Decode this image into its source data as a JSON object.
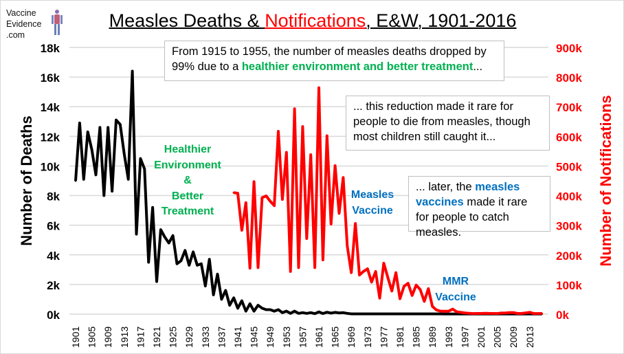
{
  "logo": {
    "line1": "Vaccine",
    "line2": "Evidence",
    "line3": ".com"
  },
  "title": {
    "part1": "Measles Deaths & ",
    "part2": "Notifications",
    "part3": ", E&W, 1901-2016"
  },
  "annotations": {
    "box1": {
      "text1": "From 1915 to 1955, the number of measles deaths dropped by 99% due to a ",
      "highlight": "healthier environment and better treatment",
      "text2": "..."
    },
    "box2": {
      "text": "... this reduction made it rare for people to die from measles, though most children still caught it..."
    },
    "box3": {
      "text1": "... later, the ",
      "highlight": "measles vaccines",
      "text2": " made it rare for people to catch measles."
    },
    "healthier": [
      "Healthier",
      "Environment",
      "&",
      "Better",
      "Treatment"
    ],
    "measles_vaccine": [
      "Measles",
      "Vaccine"
    ],
    "mmr_vaccine": [
      "MMR",
      "Vaccine"
    ]
  },
  "colors": {
    "deaths": "#000000",
    "notifications": "#ff0000",
    "green": "#00b050",
    "blue": "#0070c0",
    "grid": "#d9d9d9"
  },
  "chart_data": {
    "type": "line",
    "title": "Measles Deaths & Notifications, E&W, 1901-2016",
    "xlabel": "",
    "ylabel": "Number of Deaths",
    "y2label": "Number of Notifications",
    "xlim": [
      1901,
      2016
    ],
    "ylim": [
      0,
      18000
    ],
    "y2lim": [
      0,
      900000
    ],
    "grid": true,
    "x_ticks": [
      "1901",
      "1905",
      "1909",
      "1913",
      "1917",
      "1921",
      "1925",
      "1929",
      "1933",
      "1937",
      "1941",
      "1945",
      "1949",
      "1953",
      "1957",
      "1961",
      "1965",
      "1969",
      "1973",
      "1977",
      "1981",
      "1985",
      "1989",
      "1993",
      "1997",
      "2001",
      "2005",
      "2009",
      "2013"
    ],
    "y_ticks": [
      "0k",
      "2k",
      "4k",
      "6k",
      "8k",
      "10k",
      "12k",
      "14k",
      "16k",
      "18k"
    ],
    "y2_ticks": [
      "0k",
      "100k",
      "200k",
      "300k",
      "400k",
      "500k",
      "600k",
      "700k",
      "800k",
      "900k"
    ],
    "series": [
      {
        "axis": "left",
        "start_year": 1901,
        "values": [
          9000,
          12900,
          9100,
          12300,
          11100,
          9400,
          12600,
          8000,
          12600,
          8300,
          13100,
          12800,
          10800,
          9100,
          16400,
          5400,
          10500,
          9800,
          3500,
          7200,
          2200,
          5700,
          5200,
          4800,
          5300,
          3400,
          3600,
          4300,
          3300,
          4200,
          3300,
          3400,
          1900,
          3700,
          1300,
          2700,
          1000,
          1600,
          600,
          1100,
          400,
          900,
          200,
          700,
          200,
          600,
          400,
          300,
          300,
          200,
          300,
          100,
          200,
          50,
          200,
          50,
          100,
          50,
          100,
          30,
          150,
          40,
          130,
          70,
          120,
          80,
          100,
          50,
          20,
          20,
          20,
          20,
          20,
          20,
          20,
          20,
          20,
          20,
          20,
          20,
          20,
          20,
          20,
          20,
          20,
          20,
          20,
          20,
          20,
          20,
          20,
          10,
          10,
          10,
          10,
          10,
          10,
          10,
          10,
          10,
          10,
          10,
          10,
          10,
          10,
          10,
          10,
          10,
          10,
          10,
          10,
          10,
          10,
          10,
          10,
          10
        ]
      },
      {
        "axis": "right",
        "start_year": 1940,
        "values": [
          410000,
          408000,
          283000,
          376000,
          155000,
          447000,
          157000,
          393000,
          399000,
          381000,
          366000,
          617000,
          387000,
          546000,
          144000,
          693000,
          157000,
          633000,
          255000,
          538000,
          157000,
          764000,
          183000,
          602000,
          304000,
          501000,
          340000,
          461000,
          230000,
          140000,
          306000,
          132000,
          144000,
          153000,
          108000,
          144000,
          54000,
          172000,
          124000,
          78000,
          140000,
          52000,
          94000,
          104000,
          63000,
          98000,
          83000,
          43000,
          86000,
          26000,
          14000,
          10000,
          10000,
          10000,
          17000,
          8000,
          6000,
          4000,
          3000,
          2000,
          2400,
          2200,
          3000,
          2500,
          2400,
          2100,
          3700,
          3700,
          5100,
          5200,
          2200,
          2300,
          4200,
          6200,
          1900,
          1900,
          2400
        ]
      }
    ]
  }
}
